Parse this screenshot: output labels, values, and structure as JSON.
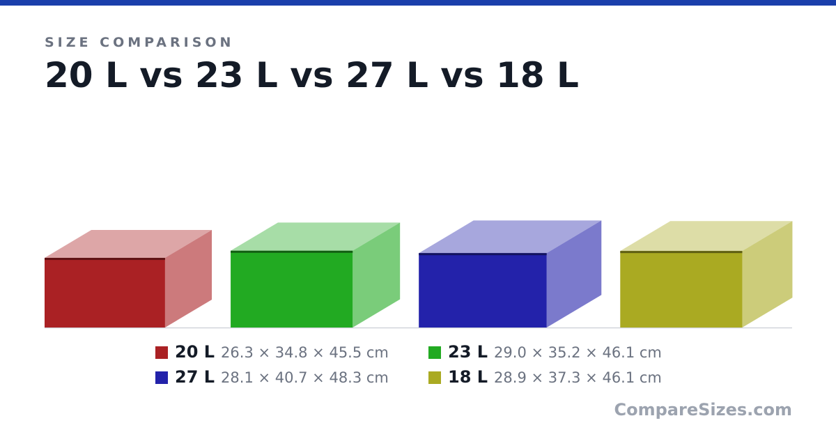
{
  "chart_data": {
    "type": "box3d",
    "kicker": "SIZE COMPARISON",
    "title": "20 L vs 23 L vs 27 L vs 18 L",
    "series": [
      {
        "name": "20 L",
        "color": "#aa2124",
        "values": [
          26.3,
          34.8,
          45.5
        ],
        "value_label": "26.3 × 34.8 × 45.5 cm"
      },
      {
        "name": "23 L",
        "color": "#22aa22",
        "values": [
          29.0,
          35.2,
          46.1
        ],
        "value_label": "29.0 × 35.2 × 46.1 cm"
      },
      {
        "name": "27 L",
        "color": "#2322aa",
        "values": [
          28.1,
          40.7,
          48.3
        ],
        "value_label": "28.1 × 40.7 × 48.3 cm"
      },
      {
        "name": "18 L",
        "color": "#aaaa22",
        "values": [
          28.9,
          37.3,
          46.1
        ],
        "value_label": "28.9 × 37.3 × 46.1 cm"
      }
    ],
    "brand": "CompareSizes.com"
  }
}
